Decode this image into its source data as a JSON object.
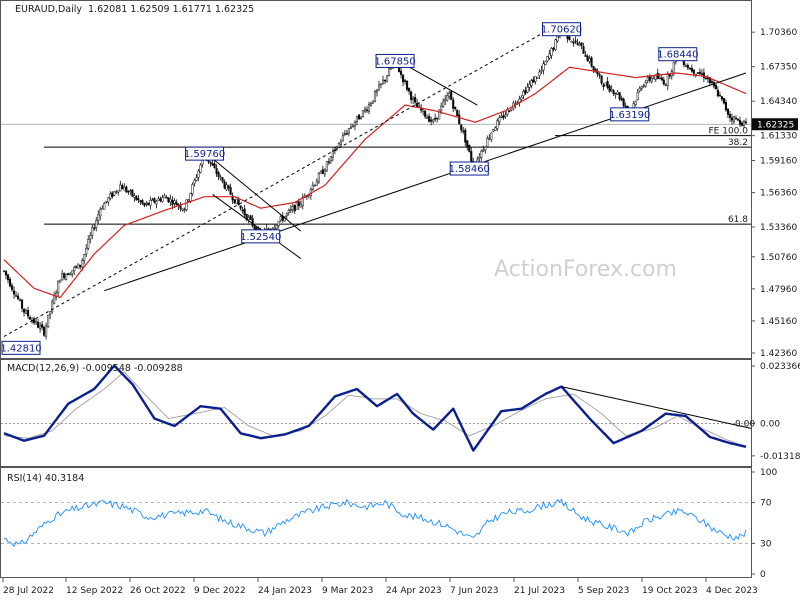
{
  "header": {
    "symbol": "EURAUD,Daily",
    "ohlc": "1.62081 1.62509 1.61771 1.62325"
  },
  "watermark": "ActionForex.com",
  "colors": {
    "candle": "#0a0a0a",
    "ema": "#d62020",
    "macd_line": "#0b1f8f",
    "macd_signal": "#a8a8a8",
    "rsi_line": "#1e90ff",
    "trend_line": "#000000",
    "level_label": "#0b1f8f",
    "price_tag_bg": "#0a0a0a"
  },
  "chart_data": [
    {
      "type": "candlestick",
      "panel": "price",
      "title": "EURAUD,Daily",
      "y_ticks": [
        "1.70360",
        "1.67350",
        "1.64340",
        "1.61330",
        "1.59160",
        "1.56360",
        "1.53360",
        "1.50760",
        "1.47960",
        "1.45160",
        "1.42360"
      ],
      "ylim": [
        1.4236,
        1.7186
      ],
      "x_ticks": [
        "28 Jul 2022",
        "12 Sep 2022",
        "26 Oct 2022",
        "9 Dec 2022",
        "24 Jan 2023",
        "9 Mar 2023",
        "24 Apr 2023",
        "7 Jun 2023",
        "21 Jul 2023",
        "5 Sep 2023",
        "19 Oct 2023",
        "4 Dec 2023"
      ],
      "current_price": "1.62325",
      "level_labels": [
        {
          "text": "1.42810",
          "bar": 2,
          "price": 1.4281
        },
        {
          "text": "1.59760",
          "bar": 100,
          "price": 1.5976
        },
        {
          "text": "1.52540",
          "bar": 128,
          "price": 1.5254
        },
        {
          "text": "1.67850",
          "bar": 195,
          "price": 1.6785
        },
        {
          "text": "1.58460",
          "bar": 232,
          "price": 1.5846
        },
        {
          "text": "1.70620",
          "bar": 278,
          "price": 1.7062
        },
        {
          "text": "1.63190",
          "bar": 312,
          "price": 1.6319
        },
        {
          "text": "1.68440",
          "bar": 336,
          "price": 1.6844
        }
      ],
      "fib_levels": [
        {
          "text": "FE 100.0",
          "price": 1.6133
        },
        {
          "text": "38.2",
          "price": 1.6033
        },
        {
          "text": "61.8",
          "price": 1.5361
        }
      ],
      "waypoints": [
        [
          0,
          1.495
        ],
        [
          10,
          1.46
        ],
        [
          20,
          1.442
        ],
        [
          28,
          1.49
        ],
        [
          38,
          1.5
        ],
        [
          48,
          1.55
        ],
        [
          58,
          1.57
        ],
        [
          70,
          1.552
        ],
        [
          80,
          1.56
        ],
        [
          90,
          1.55
        ],
        [
          100,
          1.597
        ],
        [
          110,
          1.57
        ],
        [
          118,
          1.55
        ],
        [
          128,
          1.526
        ],
        [
          138,
          1.54
        ],
        [
          148,
          1.555
        ],
        [
          160,
          1.585
        ],
        [
          170,
          1.615
        ],
        [
          182,
          1.64
        ],
        [
          195,
          1.678
        ],
        [
          205,
          1.64
        ],
        [
          214,
          1.625
        ],
        [
          222,
          1.65
        ],
        [
          230,
          1.61
        ],
        [
          234,
          1.586
        ],
        [
          244,
          1.62
        ],
        [
          256,
          1.645
        ],
        [
          268,
          1.67
        ],
        [
          278,
          1.705
        ],
        [
          288,
          1.69
        ],
        [
          298,
          1.66
        ],
        [
          306,
          1.65
        ],
        [
          312,
          1.633
        ],
        [
          318,
          1.658
        ],
        [
          324,
          1.665
        ],
        [
          330,
          1.66
        ],
        [
          336,
          1.684
        ],
        [
          342,
          1.672
        ],
        [
          350,
          1.665
        ],
        [
          356,
          1.65
        ],
        [
          362,
          1.63
        ],
        [
          370,
          1.6232
        ]
      ],
      "ema_waypoints": [
        [
          0,
          1.505
        ],
        [
          15,
          1.48
        ],
        [
          28,
          1.472
        ],
        [
          45,
          1.51
        ],
        [
          60,
          1.535
        ],
        [
          80,
          1.548
        ],
        [
          100,
          1.56
        ],
        [
          115,
          1.56
        ],
        [
          128,
          1.55
        ],
        [
          145,
          1.555
        ],
        [
          160,
          1.57
        ],
        [
          180,
          1.61
        ],
        [
          200,
          1.64
        ],
        [
          215,
          1.635
        ],
        [
          235,
          1.625
        ],
        [
          250,
          1.635
        ],
        [
          265,
          1.65
        ],
        [
          282,
          1.673
        ],
        [
          300,
          1.668
        ],
        [
          315,
          1.664
        ],
        [
          335,
          1.668
        ],
        [
          350,
          1.665
        ],
        [
          370,
          1.65
        ]
      ],
      "trend_lines": [
        {
          "from": [
            50,
            1.478
          ],
          "to": [
            370,
            1.668
          ],
          "style": "solid"
        },
        {
          "from": [
            0,
            1.438
          ],
          "to": [
            278,
            1.712
          ],
          "style": "dashed"
        },
        {
          "from": [
            100,
            1.599
          ],
          "to": [
            148,
            1.53
          ],
          "style": "solid"
        },
        {
          "from": [
            195,
            1.68
          ],
          "to": [
            236,
            1.64
          ],
          "style": "solid"
        },
        {
          "from": [
            104,
            1.562
          ],
          "to": [
            148,
            1.506
          ],
          "style": "solid"
        }
      ]
    },
    {
      "type": "line",
      "panel": "macd",
      "title": "MACD(12,26,9) -0.009548 -0.009288",
      "y_ticks": [
        "0.023366",
        "0.00",
        "-0.013186"
      ],
      "ylim": [
        -0.0165,
        0.025
      ],
      "series": [
        {
          "name": "MACD",
          "values_waypoints": [
            [
              0,
              -0.004
            ],
            [
              10,
              -0.007
            ],
            [
              20,
              -0.005
            ],
            [
              32,
              0.008
            ],
            [
              45,
              0.014
            ],
            [
              55,
              0.0235
            ],
            [
              64,
              0.016
            ],
            [
              75,
              0.002
            ],
            [
              85,
              -0.001
            ],
            [
              98,
              0.007
            ],
            [
              108,
              0.006
            ],
            [
              118,
              -0.004
            ],
            [
              128,
              -0.006
            ],
            [
              140,
              -0.0045
            ],
            [
              152,
              -0.001
            ],
            [
              165,
              0.011
            ],
            [
              176,
              0.014
            ],
            [
              186,
              0.007
            ],
            [
              196,
              0.012
            ],
            [
              204,
              0.004
            ],
            [
              214,
              -0.0025
            ],
            [
              224,
              0.006
            ],
            [
              234,
              -0.011
            ],
            [
              248,
              0.005
            ],
            [
              258,
              0.006
            ],
            [
              270,
              0.012
            ],
            [
              278,
              0.015
            ],
            [
              292,
              0.002
            ],
            [
              304,
              -0.008
            ],
            [
              318,
              -0.003
            ],
            [
              330,
              0.004
            ],
            [
              340,
              0.003
            ],
            [
              352,
              -0.0055
            ],
            [
              362,
              -0.008
            ],
            [
              370,
              -0.0095
            ]
          ]
        },
        {
          "name": "Signal",
          "values_waypoints": [
            [
              0,
              -0.005
            ],
            [
              12,
              -0.006
            ],
            [
              24,
              -0.003
            ],
            [
              36,
              0.006
            ],
            [
              50,
              0.014
            ],
            [
              60,
              0.021
            ],
            [
              70,
              0.012
            ],
            [
              82,
              0.002
            ],
            [
              95,
              0.004
            ],
            [
              110,
              0.0065
            ],
            [
              122,
              -0.001
            ],
            [
              134,
              -0.005
            ],
            [
              148,
              -0.003
            ],
            [
              160,
              0.003
            ],
            [
              172,
              0.0115
            ],
            [
              184,
              0.01
            ],
            [
              196,
              0.01
            ],
            [
              208,
              0.004
            ],
            [
              220,
              0.001
            ],
            [
              232,
              -0.005
            ],
            [
              244,
              -0.001
            ],
            [
              256,
              0.0045
            ],
            [
              270,
              0.01
            ],
            [
              284,
              0.012
            ],
            [
              298,
              0.004
            ],
            [
              310,
              -0.005
            ],
            [
              324,
              -0.002
            ],
            [
              336,
              0.003
            ],
            [
              348,
              -0.002
            ],
            [
              360,
              -0.0065
            ],
            [
              370,
              -0.0093
            ]
          ]
        }
      ],
      "trend_line": {
        "from": [
          278,
          0.015
        ],
        "to": [
          370,
          -0.002
        ]
      },
      "zero_label": "0.00"
    },
    {
      "type": "line",
      "panel": "rsi",
      "title": "RSI(14) 40.3184",
      "y_ticks": [
        "100",
        "70",
        "30",
        "0"
      ],
      "ylim": [
        0,
        100
      ],
      "guide_levels": [
        70,
        30
      ],
      "series": [
        {
          "name": "RSI(14)",
          "values_waypoints": [
            [
              0,
              35
            ],
            [
              8,
              28
            ],
            [
              16,
              42
            ],
            [
              24,
              55
            ],
            [
              32,
              62
            ],
            [
              40,
              66
            ],
            [
              50,
              70
            ],
            [
              60,
              66
            ],
            [
              72,
              56
            ],
            [
              82,
              58
            ],
            [
              90,
              60
            ],
            [
              100,
              62
            ],
            [
              110,
              52
            ],
            [
              120,
              46
            ],
            [
              130,
              40
            ],
            [
              140,
              52
            ],
            [
              150,
              60
            ],
            [
              160,
              66
            ],
            [
              170,
              70
            ],
            [
              180,
              66
            ],
            [
              190,
              70
            ],
            [
              200,
              58
            ],
            [
              210,
              54
            ],
            [
              220,
              48
            ],
            [
              228,
              40
            ],
            [
              234,
              34
            ],
            [
              242,
              52
            ],
            [
              250,
              60
            ],
            [
              260,
              62
            ],
            [
              270,
              68
            ],
            [
              278,
              70
            ],
            [
              288,
              56
            ],
            [
              298,
              48
            ],
            [
              306,
              44
            ],
            [
              312,
              40
            ],
            [
              320,
              52
            ],
            [
              330,
              58
            ],
            [
              338,
              62
            ],
            [
              346,
              54
            ],
            [
              354,
              44
            ],
            [
              360,
              38
            ],
            [
              366,
              36
            ],
            [
              370,
              40.3
            ]
          ]
        }
      ]
    }
  ]
}
